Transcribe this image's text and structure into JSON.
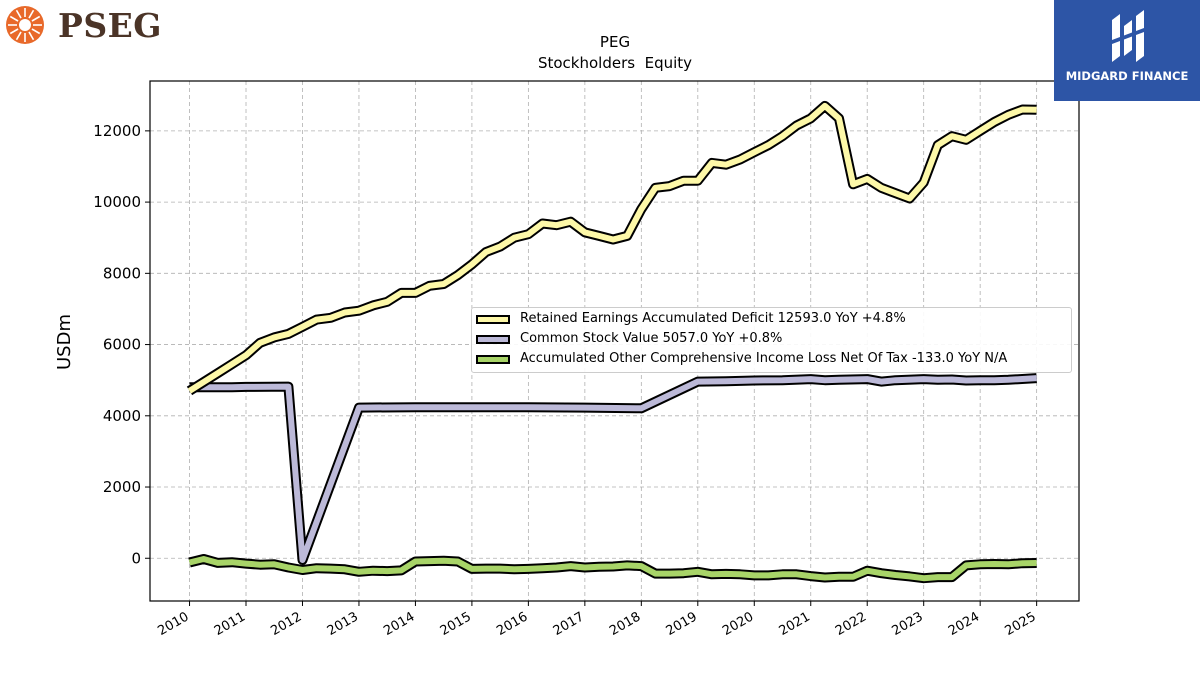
{
  "brand": {
    "left_logo_text": "PSEG",
    "right_logo_text": "MIDGARD FINANCE",
    "pseg_color": "#e8692a",
    "midgard_bg": "#2d55a6"
  },
  "chart_data": {
    "type": "line",
    "title": "PEG",
    "subtitle": "Stockholders  Equity",
    "ylabel": "USDm",
    "xlabel": "",
    "xlim": [
      2009.3,
      2025.75
    ],
    "ylim": [
      -1200,
      13400
    ],
    "xticks": [
      2010,
      2011,
      2012,
      2013,
      2014,
      2015,
      2016,
      2017,
      2018,
      2019,
      2020,
      2021,
      2022,
      2023,
      2024,
      2025
    ],
    "yticks": [
      0,
      2000,
      4000,
      6000,
      8000,
      10000,
      12000
    ],
    "grid": true,
    "legend_position": "center-right",
    "series": [
      {
        "name": "Retained Earnings Accumulated Deficit",
        "legend_label": "Retained Earnings Accumulated Deficit  12593.0 YoY +4.8%",
        "color": "#fdf8a8",
        "points": [
          [
            2010.0,
            4700
          ],
          [
            2010.25,
            4950
          ],
          [
            2010.5,
            5200
          ],
          [
            2010.75,
            5450
          ],
          [
            2011.0,
            5700
          ],
          [
            2011.25,
            6050
          ],
          [
            2011.5,
            6200
          ],
          [
            2011.75,
            6300
          ],
          [
            2012.0,
            6500
          ],
          [
            2012.25,
            6700
          ],
          [
            2012.5,
            6750
          ],
          [
            2012.75,
            6900
          ],
          [
            2013.0,
            6950
          ],
          [
            2013.25,
            7100
          ],
          [
            2013.5,
            7200
          ],
          [
            2013.75,
            7450
          ],
          [
            2014.0,
            7450
          ],
          [
            2014.25,
            7650
          ],
          [
            2014.5,
            7700
          ],
          [
            2014.75,
            7950
          ],
          [
            2015.0,
            8250
          ],
          [
            2015.25,
            8600
          ],
          [
            2015.5,
            8750
          ],
          [
            2015.75,
            9000
          ],
          [
            2016.0,
            9100
          ],
          [
            2016.25,
            9400
          ],
          [
            2016.5,
            9350
          ],
          [
            2016.75,
            9450
          ],
          [
            2017.0,
            9150
          ],
          [
            2017.25,
            9050
          ],
          [
            2017.5,
            8950
          ],
          [
            2017.75,
            9050
          ],
          [
            2018.0,
            9800
          ],
          [
            2018.25,
            10400
          ],
          [
            2018.5,
            10450
          ],
          [
            2018.75,
            10600
          ],
          [
            2019.0,
            10600
          ],
          [
            2019.25,
            11100
          ],
          [
            2019.5,
            11050
          ],
          [
            2019.75,
            11200
          ],
          [
            2020.0,
            11400
          ],
          [
            2020.25,
            11600
          ],
          [
            2020.5,
            11850
          ],
          [
            2020.75,
            12150
          ],
          [
            2021.0,
            12350
          ],
          [
            2021.25,
            12700
          ],
          [
            2021.5,
            12350
          ],
          [
            2021.75,
            10500
          ],
          [
            2022.0,
            10650
          ],
          [
            2022.25,
            10400
          ],
          [
            2022.5,
            10250
          ],
          [
            2022.75,
            10100
          ],
          [
            2023.0,
            10550
          ],
          [
            2023.25,
            11600
          ],
          [
            2023.5,
            11850
          ],
          [
            2023.75,
            11750
          ],
          [
            2024.0,
            12000
          ],
          [
            2024.25,
            12250
          ],
          [
            2024.5,
            12450
          ],
          [
            2024.75,
            12600
          ],
          [
            2025.0,
            12593
          ]
        ]
      },
      {
        "name": "Common Stock Value",
        "legend_label": "Common Stock Value  5057.0 YoY +0.8%",
        "color": "#bcb9d8",
        "points": [
          [
            2010.0,
            4800
          ],
          [
            2010.75,
            4800
          ],
          [
            2011.0,
            4810
          ],
          [
            2011.75,
            4820
          ],
          [
            2012.0,
            -50
          ],
          [
            2013.0,
            4230
          ],
          [
            2014.0,
            4240
          ],
          [
            2015.0,
            4240
          ],
          [
            2016.0,
            4240
          ],
          [
            2017.0,
            4230
          ],
          [
            2018.0,
            4210
          ],
          [
            2019.0,
            4960
          ],
          [
            2019.5,
            4970
          ],
          [
            2020.0,
            4990
          ],
          [
            2020.5,
            5000
          ],
          [
            2021.0,
            5030
          ],
          [
            2021.25,
            5000
          ],
          [
            2021.5,
            5010
          ],
          [
            2022.0,
            5030
          ],
          [
            2022.25,
            4960
          ],
          [
            2022.5,
            5000
          ],
          [
            2023.0,
            5030
          ],
          [
            2023.25,
            5010
          ],
          [
            2023.5,
            5020
          ],
          [
            2023.75,
            4990
          ],
          [
            2024.0,
            5000
          ],
          [
            2024.25,
            5000
          ],
          [
            2024.5,
            5010
          ],
          [
            2025.0,
            5057
          ]
        ]
      },
      {
        "name": "Accumulated Other Comprehensive Income Loss Net Of Tax",
        "legend_label": "Accumulated Other Comprehensive Income Loss Net Of Tax  -133.0 YoY N/A",
        "color": "#a8d468",
        "points": [
          [
            2010.0,
            -120
          ],
          [
            2010.25,
            -20
          ],
          [
            2010.5,
            -130
          ],
          [
            2010.75,
            -110
          ],
          [
            2011.0,
            -150
          ],
          [
            2011.25,
            -180
          ],
          [
            2011.5,
            -170
          ],
          [
            2011.75,
            -260
          ],
          [
            2012.0,
            -330
          ],
          [
            2012.25,
            -280
          ],
          [
            2012.5,
            -290
          ],
          [
            2012.75,
            -310
          ],
          [
            2013.0,
            -380
          ],
          [
            2013.25,
            -350
          ],
          [
            2013.5,
            -360
          ],
          [
            2013.75,
            -340
          ],
          [
            2014.0,
            -90
          ],
          [
            2014.25,
            -80
          ],
          [
            2014.5,
            -70
          ],
          [
            2014.75,
            -90
          ],
          [
            2015.0,
            -300
          ],
          [
            2015.25,
            -290
          ],
          [
            2015.5,
            -290
          ],
          [
            2015.75,
            -310
          ],
          [
            2016.0,
            -300
          ],
          [
            2016.25,
            -280
          ],
          [
            2016.5,
            -260
          ],
          [
            2016.75,
            -220
          ],
          [
            2017.0,
            -260
          ],
          [
            2017.25,
            -240
          ],
          [
            2017.5,
            -230
          ],
          [
            2017.75,
            -200
          ],
          [
            2018.0,
            -220
          ],
          [
            2018.25,
            -430
          ],
          [
            2018.5,
            -430
          ],
          [
            2018.75,
            -420
          ],
          [
            2019.0,
            -380
          ],
          [
            2019.25,
            -450
          ],
          [
            2019.5,
            -440
          ],
          [
            2019.75,
            -450
          ],
          [
            2020.0,
            -480
          ],
          [
            2020.25,
            -480
          ],
          [
            2020.5,
            -450
          ],
          [
            2020.75,
            -450
          ],
          [
            2021.0,
            -500
          ],
          [
            2021.25,
            -540
          ],
          [
            2021.5,
            -520
          ],
          [
            2021.75,
            -520
          ],
          [
            2022.0,
            -350
          ],
          [
            2022.25,
            -420
          ],
          [
            2022.5,
            -470
          ],
          [
            2022.75,
            -510
          ],
          [
            2023.0,
            -560
          ],
          [
            2023.25,
            -530
          ],
          [
            2023.5,
            -530
          ],
          [
            2023.75,
            -200
          ],
          [
            2024.0,
            -170
          ],
          [
            2024.25,
            -160
          ],
          [
            2024.5,
            -170
          ],
          [
            2024.75,
            -140
          ],
          [
            2025.0,
            -133
          ]
        ]
      }
    ]
  }
}
